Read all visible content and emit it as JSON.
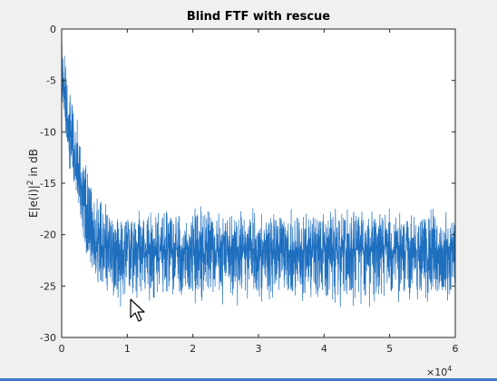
{
  "chart_data": {
    "type": "line",
    "title": "Blind FTF with rescue",
    "xlabel": "",
    "ylabel": "E|e(i)|² in dB",
    "ylabel_parts": {
      "pre": "E|e(i)|",
      "sup": "2",
      "post": " in dB"
    },
    "x_exponent": {
      "base": "×10",
      "power": "4"
    },
    "xlim": [
      0,
      60000
    ],
    "ylim": [
      -30,
      0
    ],
    "x_ticks": [
      0,
      10000,
      20000,
      30000,
      40000,
      50000,
      60000
    ],
    "x_tick_labels": [
      "0",
      "1",
      "2",
      "3",
      "4",
      "5",
      "6"
    ],
    "y_ticks": [
      0,
      -5,
      -10,
      -15,
      -20,
      -25,
      -30
    ],
    "y_tick_labels": [
      "0",
      "-5",
      "-10",
      "-15",
      "-20",
      "-25",
      "-30"
    ],
    "grid": false,
    "legend": "none",
    "series": [
      {
        "color": "#1f6fbf",
        "envelope": {
          "x": [
            0,
            500,
            1000,
            2000,
            3000,
            4000,
            5000,
            6000,
            8000,
            10000,
            20000,
            30000,
            40000,
            50000,
            60000
          ],
          "mean": [
            -4,
            -7,
            -9,
            -12.5,
            -15.5,
            -18.5,
            -20.5,
            -21.2,
            -21.4,
            -21.5,
            -21.4,
            -21.5,
            -21.5,
            -21.5,
            -21.6
          ],
          "upper": [
            -0.8,
            -3,
            -5,
            -8.5,
            -11.5,
            -14.5,
            -16.5,
            -17.5,
            -18.3,
            -18.5,
            -18.0,
            -18.3,
            -18.3,
            -18.2,
            -18.3
          ],
          "lower": [
            -7,
            -10,
            -12.5,
            -16,
            -19.5,
            -22.5,
            -24.5,
            -25.5,
            -25.8,
            -25.8,
            -25.5,
            -25.8,
            -26.0,
            -25.8,
            -25.5
          ]
        }
      }
    ]
  },
  "cursor": {
    "name": "mouse-pointer"
  }
}
